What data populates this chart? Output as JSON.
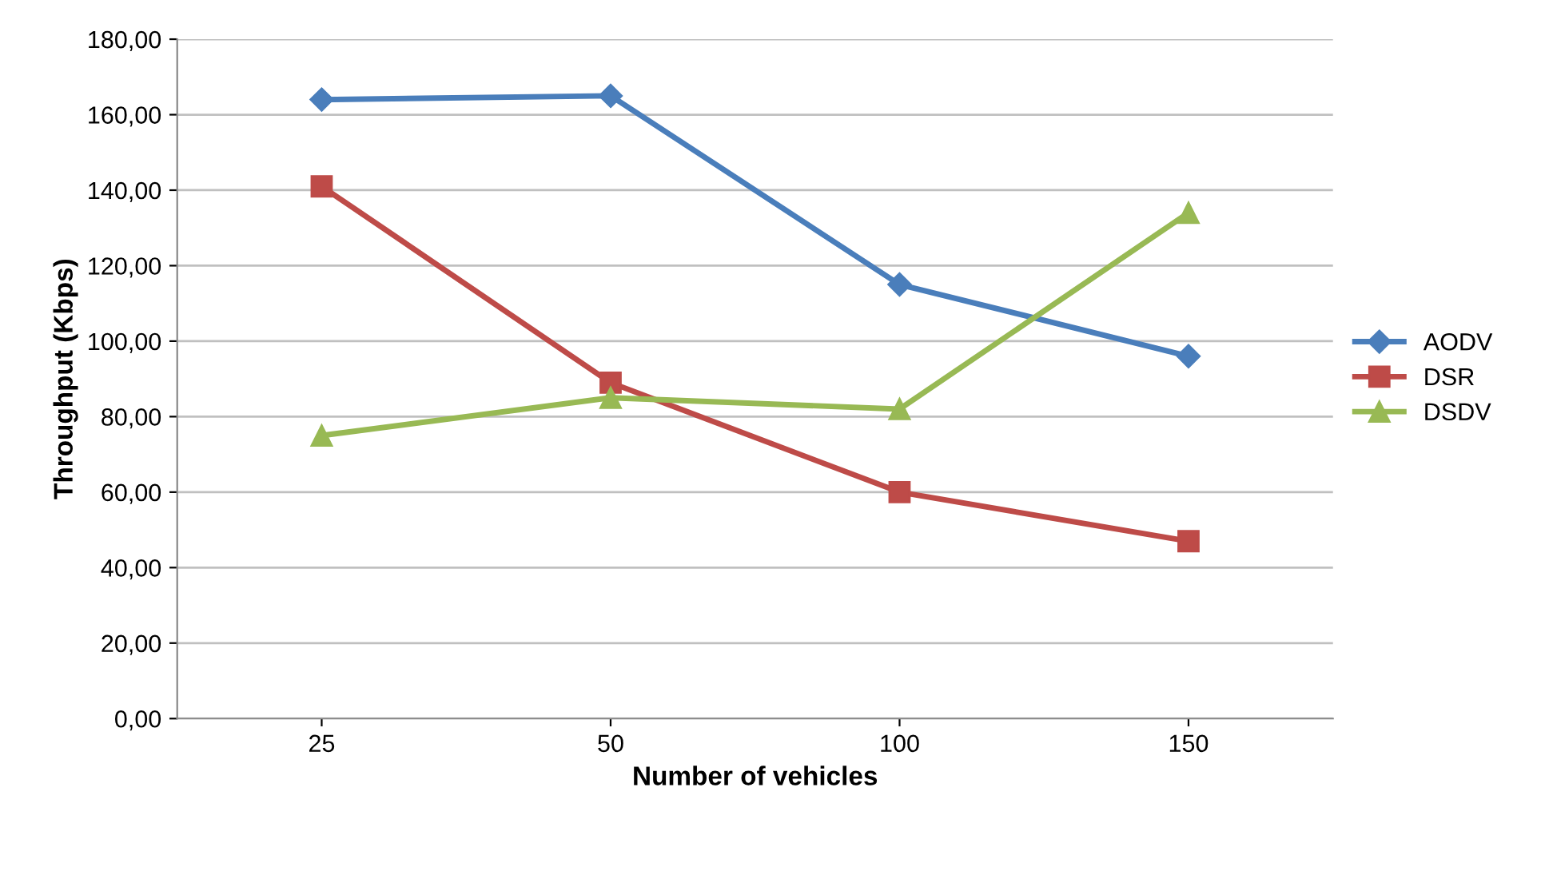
{
  "chart_data": {
    "type": "line",
    "xlabel": "Number of vehicles",
    "ylabel": "Throughput (Kbps)",
    "categories": [
      "25",
      "50",
      "100",
      "150"
    ],
    "series": [
      {
        "name": "AODV",
        "color": "#4a7ebb",
        "marker": "diamond",
        "values": [
          164,
          165,
          115,
          96
        ]
      },
      {
        "name": "DSR",
        "color": "#be4b48",
        "marker": "square",
        "values": [
          141,
          89,
          60,
          47
        ]
      },
      {
        "name": "DSDV",
        "color": "#98b954",
        "marker": "triangle",
        "values": [
          75,
          85,
          82,
          134
        ]
      }
    ],
    "ylim": [
      0,
      180
    ],
    "yticks": [
      {
        "value": 0,
        "label": "0,00"
      },
      {
        "value": 20,
        "label": "20,00"
      },
      {
        "value": 40,
        "label": "40,00"
      },
      {
        "value": 60,
        "label": "60,00"
      },
      {
        "value": 80,
        "label": "80,00"
      },
      {
        "value": 100,
        "label": "100,00"
      },
      {
        "value": 120,
        "label": "120,00"
      },
      {
        "value": 140,
        "label": "140,00"
      },
      {
        "value": 160,
        "label": "160,00"
      },
      {
        "value": 180,
        "label": "180,00"
      }
    ],
    "grid": "y",
    "legend": "right",
    "line_style": "solid"
  }
}
